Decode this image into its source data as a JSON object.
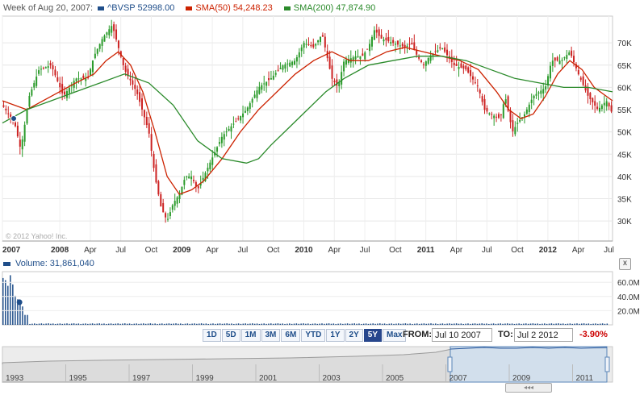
{
  "legend": {
    "label": "Week of Aug 20, 2007:",
    "items": [
      {
        "text": "^BVSP 52998.00",
        "color": "#1f4e8a"
      },
      {
        "text": "SMA(50) 54,248.23",
        "color": "#cc2200"
      },
      {
        "text": "SMA(200) 47,874.90",
        "color": "#2a8a2a"
      }
    ]
  },
  "watermark": "© 2012 Yahoo! Inc.",
  "volume": {
    "label": "Volume: 31,861,040",
    "ticks": [
      "60.0M",
      "40.0M",
      "20.0M"
    ],
    "tick_values": [
      60,
      40,
      20
    ]
  },
  "close_label": "x",
  "range_buttons": [
    {
      "label": "1D",
      "active": false
    },
    {
      "label": "5D",
      "active": false
    },
    {
      "label": "1M",
      "active": false
    },
    {
      "label": "3M",
      "active": false
    },
    {
      "label": "6M",
      "active": false
    },
    {
      "label": "YTD",
      "active": false
    },
    {
      "label": "1Y",
      "active": false
    },
    {
      "label": "2Y",
      "active": false
    },
    {
      "label": "5Y",
      "active": true
    },
    {
      "label": "Max",
      "active": false
    }
  ],
  "from_label": "FROM:",
  "from_value": "Jul 10 2007",
  "to_label": "TO:",
  "to_value": "Jul 2 2012",
  "change": "-3.90%",
  "navigator": {
    "year_labels": [
      "1993",
      "1995",
      "1997",
      "1999",
      "2001",
      "2003",
      "2005",
      "2007",
      "2009",
      "2011"
    ],
    "scroll_glyph": "◂◂◂"
  },
  "chart_data": {
    "type": "line",
    "y_ticks": [
      "70K",
      "65K",
      "60K",
      "55K",
      "50K",
      "45K",
      "40K",
      "35K",
      "30K"
    ],
    "y_values": [
      70,
      65,
      60,
      55,
      50,
      45,
      40,
      35,
      30
    ],
    "ylim": [
      25.5,
      76
    ],
    "x_tick_labels": [
      {
        "label": "2007",
        "t": 0.0,
        "bold": true
      },
      {
        "label": "2008",
        "t": 0.47,
        "bold": true
      },
      {
        "label": "Apr",
        "t": 0.72
      },
      {
        "label": "Jul",
        "t": 0.97
      },
      {
        "label": "Oct",
        "t": 1.22
      },
      {
        "label": "2009",
        "t": 1.47,
        "bold": true
      },
      {
        "label": "Apr",
        "t": 1.72
      },
      {
        "label": "Jul",
        "t": 1.97
      },
      {
        "label": "Oct",
        "t": 2.22
      },
      {
        "label": "2010",
        "t": 2.47,
        "bold": true
      },
      {
        "label": "Apr",
        "t": 2.72
      },
      {
        "label": "Jul",
        "t": 2.97
      },
      {
        "label": "Oct",
        "t": 3.22
      },
      {
        "label": "2011",
        "t": 3.47,
        "bold": true
      },
      {
        "label": "Apr",
        "t": 3.72
      },
      {
        "label": "Jul",
        "t": 3.97
      },
      {
        "label": "Oct",
        "t": 4.22
      },
      {
        "label": "2012",
        "t": 4.47,
        "bold": true
      },
      {
        "label": "Apr",
        "t": 4.72
      },
      {
        "label": "Jul",
        "t": 4.97
      }
    ],
    "xlim": [
      0.0,
      5.0
    ],
    "series": [
      {
        "name": "^BVSP",
        "color": "#1f4e8a",
        "t": [
          0.0,
          0.1,
          0.15,
          0.22,
          0.3,
          0.4,
          0.5,
          0.6,
          0.7,
          0.75,
          0.82,
          0.9,
          0.95,
          1.0,
          1.1,
          1.2,
          1.25,
          1.3,
          1.35,
          1.4,
          1.45,
          1.5,
          1.55,
          1.6,
          1.7,
          1.8,
          1.9,
          2.0,
          2.1,
          2.2,
          2.3,
          2.4,
          2.47,
          2.55,
          2.62,
          2.7,
          2.75,
          2.8,
          2.9,
          2.95,
          3.0,
          3.05,
          3.1,
          3.2,
          3.3,
          3.35,
          3.4,
          3.45,
          3.5,
          3.55,
          3.6,
          3.7,
          3.8,
          3.9,
          3.95,
          4.0,
          4.08,
          4.12,
          4.18,
          4.22,
          4.28,
          4.35,
          4.45,
          4.5,
          4.58,
          4.65,
          4.72,
          4.8,
          4.88,
          4.95,
          5.0
        ],
        "values": [
          56,
          52,
          46,
          58,
          64,
          65,
          58,
          62,
          62,
          67,
          71,
          74,
          69,
          64,
          59,
          50,
          40,
          33,
          30,
          34,
          36,
          40,
          40,
          37,
          43,
          49,
          52,
          55,
          60,
          62,
          65,
          66,
          70,
          69,
          72,
          62,
          60,
          66,
          67,
          67,
          69,
          73,
          71,
          70,
          69,
          70,
          67,
          65,
          67,
          68,
          69,
          65,
          64,
          60,
          55,
          54,
          53,
          58,
          50,
          52,
          54,
          58,
          60,
          66,
          66,
          68,
          63,
          58,
          55,
          57,
          54
        ]
      },
      {
        "name": "SMA(50)",
        "color": "#cc2200",
        "t": [
          0.0,
          0.2,
          0.4,
          0.6,
          0.75,
          0.85,
          0.95,
          1.05,
          1.15,
          1.25,
          1.35,
          1.45,
          1.55,
          1.65,
          1.8,
          1.95,
          2.1,
          2.25,
          2.4,
          2.55,
          2.7,
          2.85,
          3.0,
          3.15,
          3.3,
          3.45,
          3.6,
          3.75,
          3.9,
          4.05,
          4.15,
          4.25,
          4.35,
          4.45,
          4.55,
          4.65,
          4.75,
          4.85,
          5.0
        ],
        "values": [
          57,
          55,
          58,
          61,
          63,
          66,
          68,
          65,
          59,
          50,
          40,
          36,
          37,
          39,
          44,
          50,
          55,
          59,
          63,
          66,
          68,
          66,
          66,
          68,
          69,
          68,
          67,
          66,
          64,
          59,
          55,
          53,
          54,
          58,
          63,
          66,
          64,
          60,
          57
        ]
      },
      {
        "name": "SMA(200)",
        "color": "#2a8a2a",
        "t": [
          0.0,
          0.2,
          0.4,
          0.6,
          0.8,
          1.0,
          1.2,
          1.4,
          1.6,
          1.8,
          2.0,
          2.1,
          2.2,
          2.35,
          2.5,
          2.65,
          2.8,
          3.0,
          3.2,
          3.4,
          3.6,
          3.8,
          4.0,
          4.2,
          4.4,
          4.6,
          4.8,
          5.0
        ],
        "values": [
          52,
          55,
          57,
          59,
          61,
          63,
          61,
          56,
          48,
          44,
          43,
          44,
          47,
          51,
          55,
          59,
          62,
          65,
          66,
          67,
          67,
          66,
          64,
          62,
          61,
          60,
          60,
          59
        ]
      }
    ]
  },
  "volume_data": {
    "type": "bar",
    "xlim": [
      0.0,
      5.0
    ],
    "t": [
      0.0,
      0.02,
      0.04,
      0.06,
      0.08,
      0.1,
      0.12,
      0.14,
      0.16,
      0.18,
      0.2
    ],
    "values": [
      66,
      63,
      55,
      70,
      57,
      41,
      36,
      32,
      26,
      14,
      14
    ],
    "marker": {
      "t": 0.14,
      "value": 31.9
    }
  }
}
